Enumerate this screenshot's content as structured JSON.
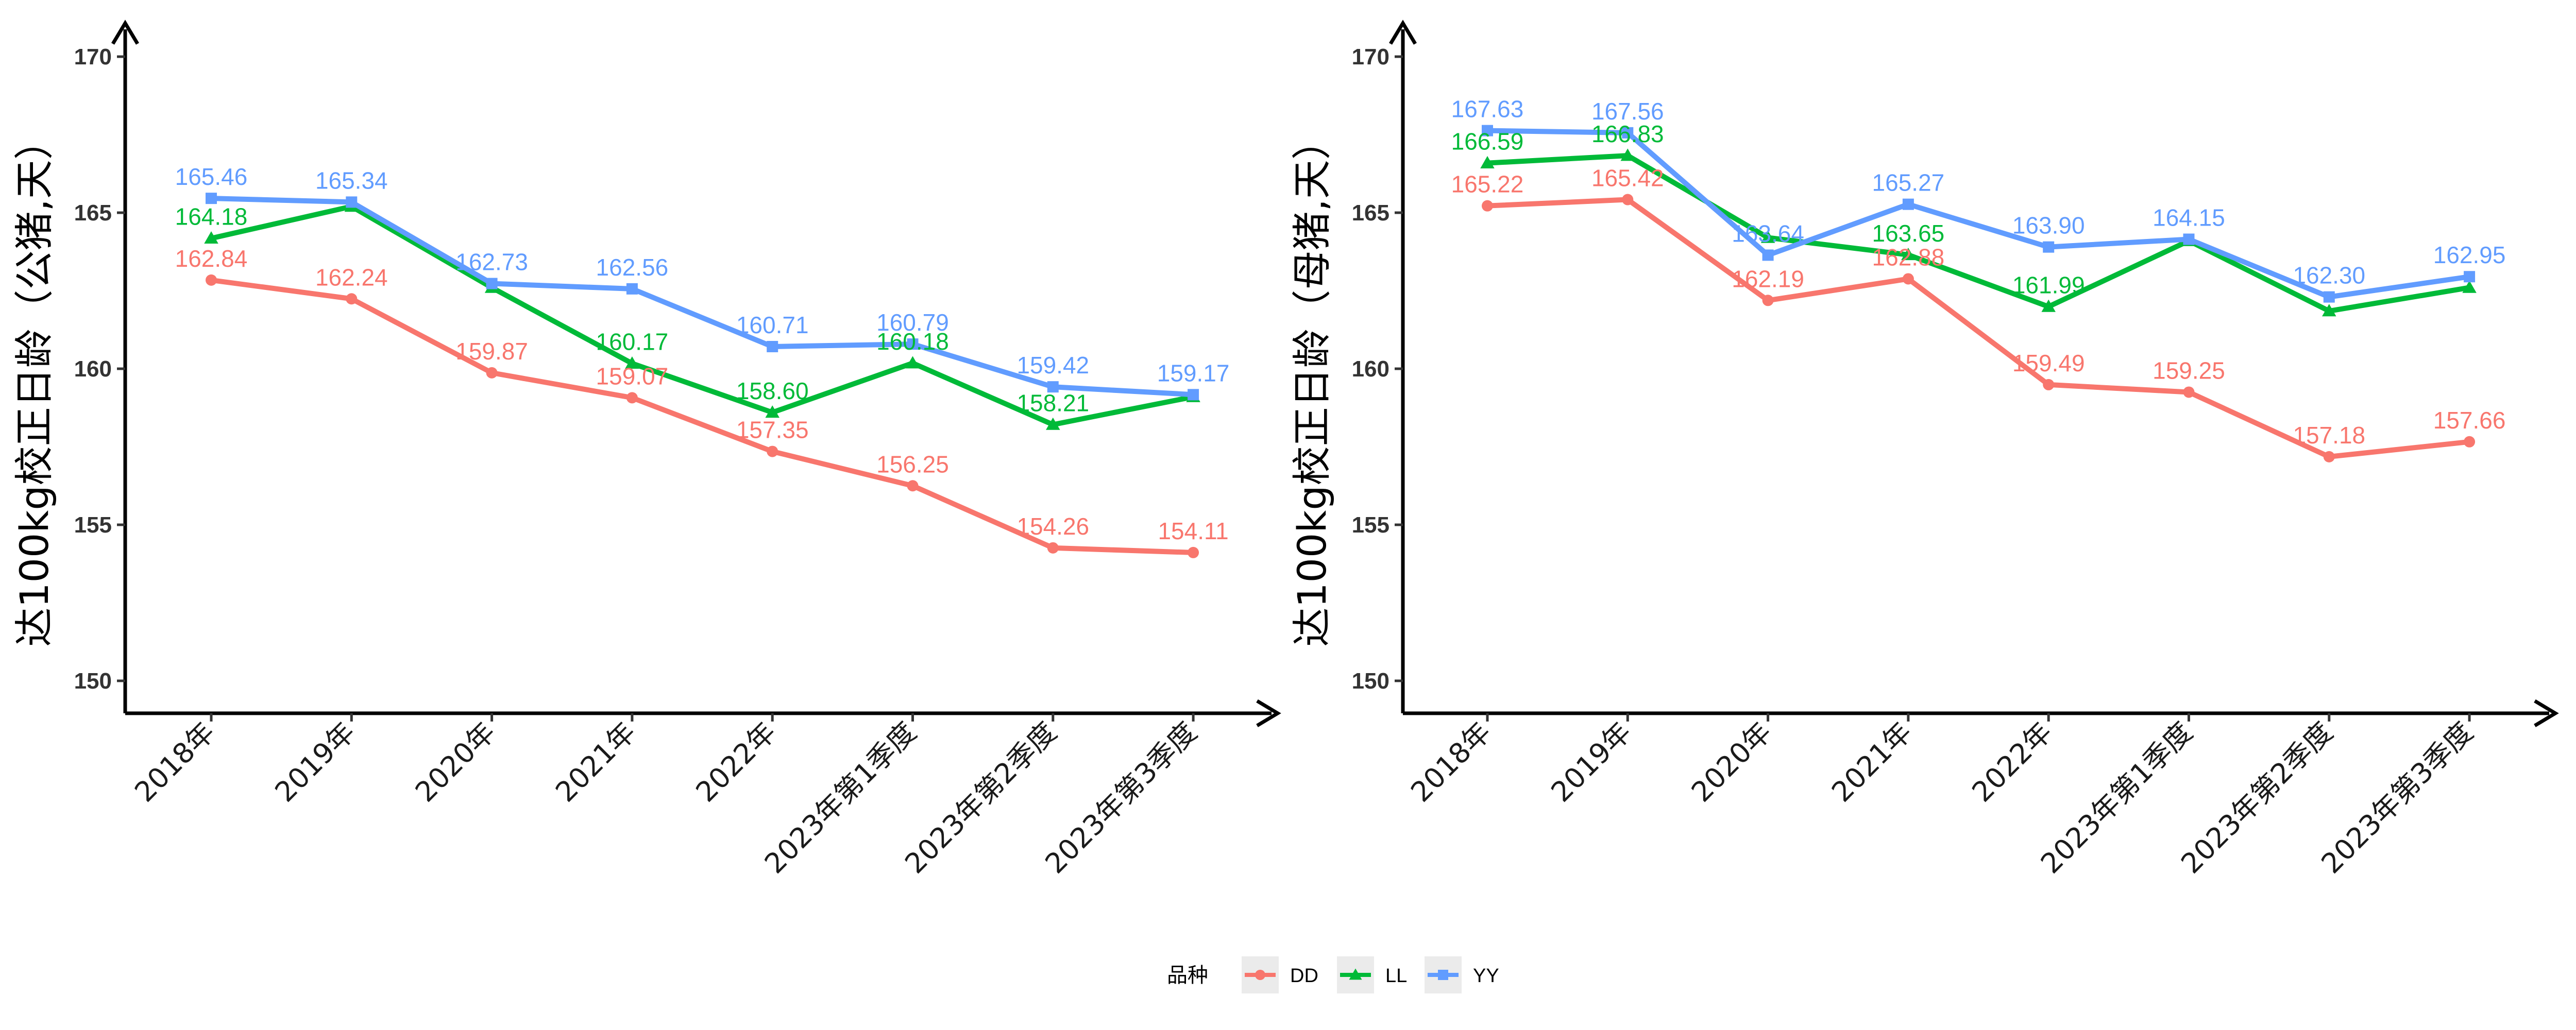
{
  "chart_data": [
    {
      "type": "line",
      "ylabel": "达100kg校正日龄（公猪,天）",
      "xlabel": "",
      "ylim": [
        150,
        170
      ],
      "yticks": [
        150,
        155,
        160,
        165,
        170
      ],
      "categories": [
        "2018年",
        "2019年",
        "2020年",
        "2021年",
        "2022年",
        "2023年第1季度",
        "2023年第2季度",
        "2023年第3季度"
      ],
      "series": [
        {
          "name": "DD",
          "color": "#F8766D",
          "marker": "circle",
          "values": [
            162.84,
            162.24,
            159.87,
            159.07,
            157.35,
            156.25,
            154.26,
            154.11
          ]
        },
        {
          "name": "LL",
          "color": "#00BA38",
          "marker": "triangle",
          "values": [
            164.18,
            165.2,
            162.6,
            160.17,
            158.6,
            160.18,
            158.21,
            159.1
          ]
        },
        {
          "name": "YY",
          "color": "#619CFF",
          "marker": "square",
          "values": [
            165.46,
            165.34,
            162.73,
            162.56,
            160.71,
            160.79,
            159.42,
            159.17
          ]
        }
      ],
      "data_labels": {
        "DD": [
          "162.84",
          "162.24",
          "159.87",
          "159.07",
          "157.35",
          "156.25",
          "154.26",
          "154.11"
        ],
        "LL": [
          "164.18",
          "",
          "",
          "160.17",
          "158.60",
          "160.18",
          "158.21",
          ""
        ],
        "YY": [
          "165.46",
          "165.34",
          "162.73",
          "162.56",
          "160.71",
          "160.79",
          "159.42",
          "159.17"
        ]
      }
    },
    {
      "type": "line",
      "ylabel": "达100kg校正日龄（母猪,天）",
      "xlabel": "",
      "ylim": [
        150,
        170
      ],
      "yticks": [
        150,
        155,
        160,
        165,
        170
      ],
      "categories": [
        "2018年",
        "2019年",
        "2020年",
        "2021年",
        "2022年",
        "2023年第1季度",
        "2023年第2季度",
        "2023年第3季度"
      ],
      "series": [
        {
          "name": "DD",
          "color": "#F8766D",
          "marker": "circle",
          "values": [
            165.22,
            165.42,
            162.19,
            162.88,
            159.49,
            159.25,
            157.18,
            157.66
          ]
        },
        {
          "name": "LL",
          "color": "#00BA38",
          "marker": "triangle",
          "values": [
            166.59,
            166.83,
            164.2,
            163.65,
            161.99,
            164.1,
            161.85,
            162.6
          ]
        },
        {
          "name": "YY",
          "color": "#619CFF",
          "marker": "square",
          "values": [
            167.63,
            167.56,
            163.64,
            165.27,
            163.9,
            164.15,
            162.3,
            162.95
          ]
        }
      ],
      "data_labels": {
        "DD": [
          "165.22",
          "165.42",
          "162.19",
          "162.88",
          "159.49",
          "159.25",
          "157.18",
          "157.66"
        ],
        "LL": [
          "166.59",
          "166.83",
          "",
          "163.65",
          "161.99",
          "",
          "",
          ""
        ],
        "YY": [
          "167.63",
          "167.56",
          "163.64",
          "165.27",
          "163.90",
          "164.15",
          "162.30",
          "162.95"
        ]
      }
    }
  ],
  "legend": {
    "title": "品种",
    "position": "bottom",
    "items": [
      {
        "name": "DD",
        "color": "#F8766D",
        "marker": "circle"
      },
      {
        "name": "LL",
        "color": "#00BA38",
        "marker": "triangle"
      },
      {
        "name": "YY",
        "color": "#619CFF",
        "marker": "square"
      }
    ]
  }
}
